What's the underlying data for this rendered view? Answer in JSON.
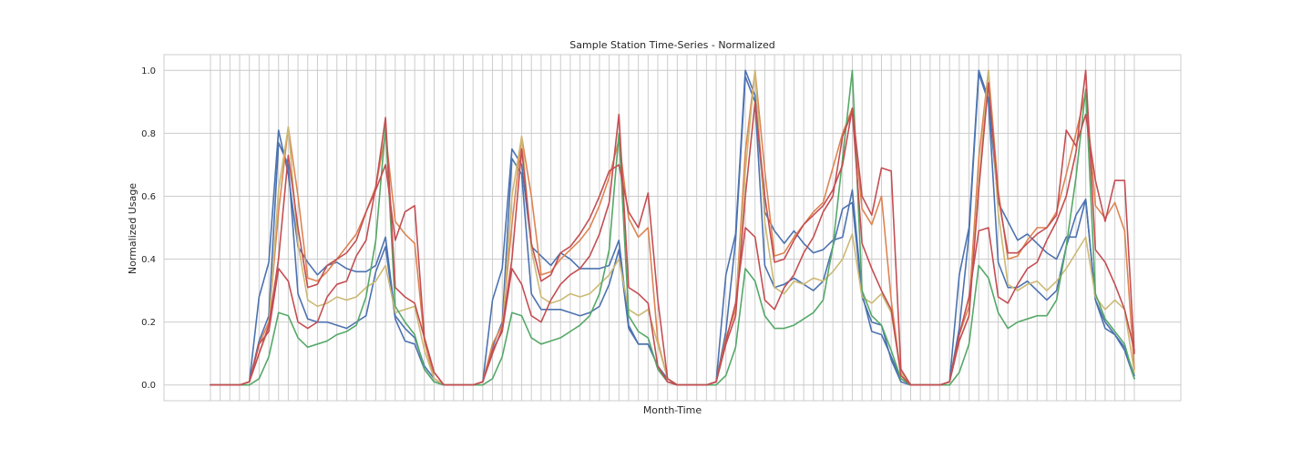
{
  "chart_data": {
    "type": "line",
    "title": "Sample Station Time-Series - Normalized",
    "xlabel": "Month-Time",
    "ylabel": "Normalized Usage",
    "ylim": [
      -0.05,
      1.05
    ],
    "yticks": [
      "0.0",
      "0.2",
      "0.4",
      "0.6",
      "0.8",
      "1.0"
    ],
    "ytick_values": [
      0,
      0.2,
      0.4,
      0.6,
      0.8,
      1.0
    ],
    "x_count": 96,
    "x_tick_labels": "none",
    "grid": true,
    "legend": "none",
    "series": [
      {
        "color": "#4c72b0",
        "values": [
          0,
          0,
          0,
          0,
          0.01,
          0.28,
          0.39,
          0.81,
          0.67,
          0.44,
          0.39,
          0.35,
          0.38,
          0.39,
          0.37,
          0.36,
          0.36,
          0.38,
          0.47,
          0.22,
          0.18,
          0.15,
          0.06,
          0.02,
          0,
          0,
          0,
          0,
          0.01,
          0.27,
          0.37,
          0.75,
          0.7,
          0.44,
          0.41,
          0.38,
          0.42,
          0.4,
          0.37,
          0.37,
          0.37,
          0.38,
          0.46,
          0.19,
          0.13,
          0.13,
          0.06,
          0.02,
          0,
          0,
          0,
          0,
          0.01,
          0.35,
          0.48,
          1.0,
          0.92,
          0.55,
          0.49,
          0.45,
          0.49,
          0.45,
          0.42,
          0.43,
          0.46,
          0.47,
          0.62,
          0.29,
          0.17,
          0.16,
          0.09,
          0.02,
          0,
          0,
          0,
          0,
          0.01,
          0.35,
          0.5,
          1.0,
          0.91,
          0.58,
          0.52,
          0.46,
          0.48,
          0.45,
          0.42,
          0.4,
          0.47,
          0.47,
          0.59,
          0.27,
          0.2,
          0.16,
          0.12,
          0.03
        ]
      },
      {
        "color": "#4c72b0",
        "values": [
          0,
          0,
          0,
          0,
          0.01,
          0.14,
          0.22,
          0.77,
          0.7,
          0.29,
          0.21,
          0.2,
          0.2,
          0.19,
          0.18,
          0.2,
          0.22,
          0.36,
          0.44,
          0.21,
          0.14,
          0.13,
          0.05,
          0.01,
          0,
          0,
          0,
          0,
          0.01,
          0.12,
          0.2,
          0.72,
          0.67,
          0.29,
          0.24,
          0.24,
          0.24,
          0.23,
          0.22,
          0.23,
          0.25,
          0.32,
          0.43,
          0.18,
          0.13,
          0.13,
          0.06,
          0.01,
          0,
          0,
          0,
          0,
          0.01,
          0.17,
          0.46,
          0.98,
          0.9,
          0.38,
          0.31,
          0.32,
          0.34,
          0.32,
          0.3,
          0.33,
          0.44,
          0.56,
          0.58,
          0.28,
          0.2,
          0.19,
          0.08,
          0.01,
          0,
          0,
          0,
          0,
          0.01,
          0.18,
          0.48,
          0.99,
          0.9,
          0.39,
          0.31,
          0.31,
          0.33,
          0.3,
          0.27,
          0.3,
          0.44,
          0.54,
          0.59,
          0.27,
          0.18,
          0.16,
          0.11,
          0.02
        ]
      },
      {
        "color": "#dd8452",
        "values": [
          0,
          0,
          0,
          0,
          0.01,
          0.13,
          0.2,
          0.55,
          0.82,
          0.6,
          0.34,
          0.33,
          0.36,
          0.4,
          0.44,
          0.48,
          0.55,
          0.63,
          0.8,
          0.52,
          0.48,
          0.45,
          0.14,
          0.02,
          0,
          0,
          0,
          0,
          0.01,
          0.13,
          0.19,
          0.51,
          0.79,
          0.6,
          0.35,
          0.36,
          0.4,
          0.43,
          0.46,
          0.5,
          0.57,
          0.66,
          0.78,
          0.53,
          0.47,
          0.5,
          0.14,
          0.02,
          0,
          0,
          0,
          0,
          0.01,
          0.15,
          0.24,
          0.74,
          1.0,
          0.68,
          0.41,
          0.42,
          0.47,
          0.51,
          0.55,
          0.58,
          0.69,
          0.8,
          0.88,
          0.56,
          0.51,
          0.6,
          0.27,
          0.03,
          0,
          0,
          0,
          0,
          0.01,
          0.16,
          0.25,
          0.72,
          1.0,
          0.62,
          0.4,
          0.41,
          0.46,
          0.5,
          0.5,
          0.55,
          0.67,
          0.8,
          0.93,
          0.57,
          0.53,
          0.58,
          0.49,
          0.05
        ]
      },
      {
        "color": "#ccb974",
        "values": [
          0,
          0,
          0,
          0,
          0.01,
          0.1,
          0.18,
          0.62,
          0.82,
          0.45,
          0.27,
          0.25,
          0.26,
          0.28,
          0.27,
          0.28,
          0.31,
          0.33,
          0.38,
          0.23,
          0.24,
          0.25,
          0.11,
          0.02,
          0,
          0,
          0,
          0,
          0.01,
          0.11,
          0.17,
          0.6,
          0.79,
          0.43,
          0.28,
          0.26,
          0.27,
          0.29,
          0.28,
          0.29,
          0.32,
          0.35,
          0.4,
          0.24,
          0.22,
          0.24,
          0.13,
          0.02,
          0,
          0,
          0,
          0,
          0.01,
          0.13,
          0.22,
          0.68,
          1.0,
          0.52,
          0.31,
          0.29,
          0.33,
          0.32,
          0.34,
          0.33,
          0.36,
          0.4,
          0.48,
          0.28,
          0.26,
          0.29,
          0.23,
          0.04,
          0,
          0,
          0,
          0,
          0.01,
          0.14,
          0.22,
          0.64,
          1.0,
          0.55,
          0.32,
          0.3,
          0.32,
          0.33,
          0.3,
          0.33,
          0.37,
          0.42,
          0.47,
          0.28,
          0.24,
          0.27,
          0.24,
          0.04
        ]
      },
      {
        "color": "#55a868",
        "values": [
          0,
          0,
          0,
          0,
          0,
          0.02,
          0.09,
          0.23,
          0.22,
          0.15,
          0.12,
          0.13,
          0.14,
          0.16,
          0.17,
          0.19,
          0.28,
          0.46,
          0.82,
          0.25,
          0.2,
          0.16,
          0.05,
          0.01,
          0,
          0,
          0,
          0,
          0,
          0.02,
          0.09,
          0.23,
          0.22,
          0.15,
          0.13,
          0.14,
          0.15,
          0.17,
          0.19,
          0.22,
          0.29,
          0.43,
          0.8,
          0.22,
          0.17,
          0.15,
          0.05,
          0.01,
          0,
          0,
          0,
          0,
          0,
          0.03,
          0.12,
          0.37,
          0.33,
          0.22,
          0.18,
          0.18,
          0.19,
          0.21,
          0.23,
          0.27,
          0.44,
          0.72,
          1.0,
          0.3,
          0.22,
          0.19,
          0.11,
          0.02,
          0,
          0,
          0,
          0,
          0,
          0.04,
          0.13,
          0.38,
          0.34,
          0.23,
          0.18,
          0.2,
          0.21,
          0.22,
          0.22,
          0.27,
          0.44,
          0.66,
          0.94,
          0.29,
          0.21,
          0.17,
          0.13,
          0.02
        ]
      },
      {
        "color": "#c44e52",
        "values": [
          0,
          0,
          0,
          0,
          0.01,
          0.13,
          0.17,
          0.37,
          0.33,
          0.2,
          0.18,
          0.2,
          0.28,
          0.32,
          0.33,
          0.41,
          0.46,
          0.63,
          0.85,
          0.31,
          0.28,
          0.26,
          0.15,
          0.04,
          0,
          0,
          0,
          0,
          0.01,
          0.11,
          0.17,
          0.37,
          0.32,
          0.22,
          0.2,
          0.27,
          0.32,
          0.35,
          0.37,
          0.41,
          0.48,
          0.58,
          0.86,
          0.31,
          0.29,
          0.26,
          0.06,
          0.01,
          0,
          0,
          0,
          0,
          0.01,
          0.14,
          0.26,
          0.5,
          0.47,
          0.27,
          0.24,
          0.31,
          0.35,
          0.42,
          0.47,
          0.55,
          0.6,
          0.79,
          0.87,
          0.45,
          0.37,
          0.3,
          0.24,
          0.03,
          0,
          0,
          0,
          0,
          0.01,
          0.16,
          0.28,
          0.49,
          0.5,
          0.28,
          0.26,
          0.32,
          0.37,
          0.39,
          0.46,
          0.52,
          0.6,
          0.74,
          1.0,
          0.43,
          0.39,
          0.32,
          0.24,
          0.11
        ]
      },
      {
        "color": "#c44e52",
        "values": [
          0,
          0,
          0,
          0,
          0.01,
          0.1,
          0.19,
          0.4,
          0.73,
          0.5,
          0.31,
          0.32,
          0.38,
          0.4,
          0.42,
          0.46,
          0.55,
          0.62,
          0.7,
          0.46,
          0.55,
          0.57,
          0.15,
          0.04,
          0,
          0,
          0,
          0,
          0.01,
          0.1,
          0.18,
          0.4,
          0.75,
          0.45,
          0.33,
          0.35,
          0.42,
          0.44,
          0.48,
          0.53,
          0.6,
          0.68,
          0.7,
          0.55,
          0.5,
          0.61,
          0.27,
          0.02,
          0,
          0,
          0,
          0,
          0.01,
          0.13,
          0.22,
          0.6,
          0.9,
          0.6,
          0.39,
          0.4,
          0.46,
          0.51,
          0.54,
          0.57,
          0.62,
          0.7,
          0.88,
          0.6,
          0.54,
          0.69,
          0.68,
          0.05,
          0,
          0,
          0,
          0,
          0.01,
          0.14,
          0.22,
          0.62,
          0.96,
          0.6,
          0.42,
          0.42,
          0.45,
          0.48,
          0.5,
          0.54,
          0.81,
          0.76,
          0.86,
          0.65,
          0.52,
          0.65,
          0.65,
          0.1
        ]
      }
    ]
  }
}
